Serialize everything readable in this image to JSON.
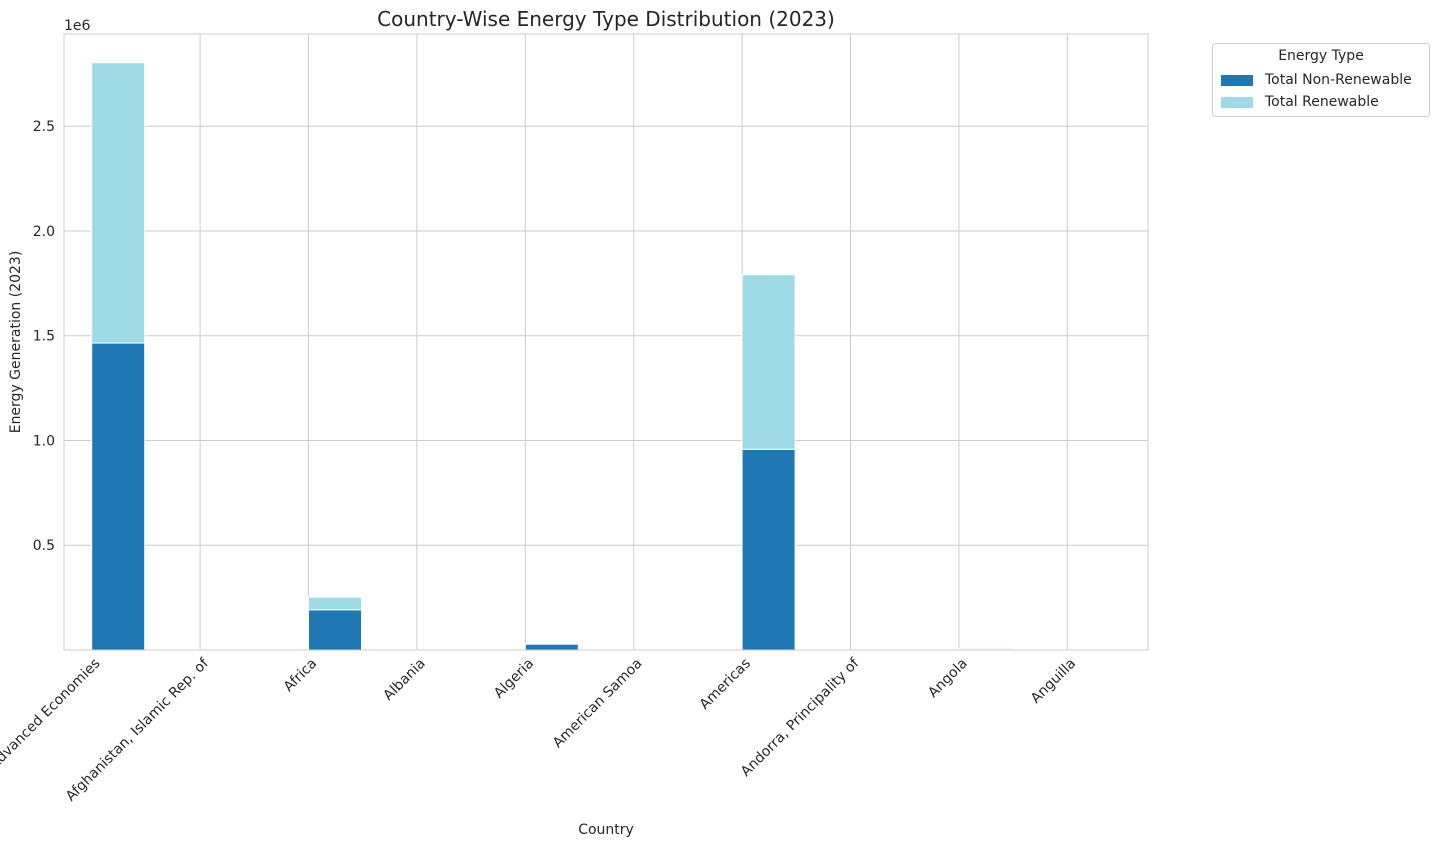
{
  "chart_data": {
    "type": "bar",
    "stacked": true,
    "title": "Country-Wise Energy Type Distribution (2023)",
    "xlabel": "Country",
    "ylabel": "Energy Generation (2023)",
    "y_offset_label": "1e6",
    "ylim": [
      0,
      2940000
    ],
    "yticks": [
      500000,
      1000000,
      1500000,
      2000000,
      2500000
    ],
    "ytick_labels": [
      "0.5",
      "1.0",
      "1.5",
      "2.0",
      "2.5"
    ],
    "grid": true,
    "legend_placement": "outside top-right",
    "legend_title": "Energy Type",
    "categories": [
      "Advanced Economies",
      "Afghanistan, Islamic Rep. of",
      "Africa",
      "Albania",
      "Algeria",
      "American Samoa",
      "Americas",
      "Andorra, Principality of",
      "Angola",
      "Anguilla"
    ],
    "series": [
      {
        "name": "Total Non-Renewable",
        "color": "#1f77b4",
        "values": [
          1465000,
          1000,
          192000,
          500,
          28000,
          200,
          958000,
          100,
          2000,
          50
        ]
      },
      {
        "name": "Total Renewable",
        "color": "#9edae5",
        "values": [
          1338000,
          1000,
          60000,
          2000,
          500,
          20,
          833000,
          10,
          6000,
          0
        ]
      }
    ]
  }
}
